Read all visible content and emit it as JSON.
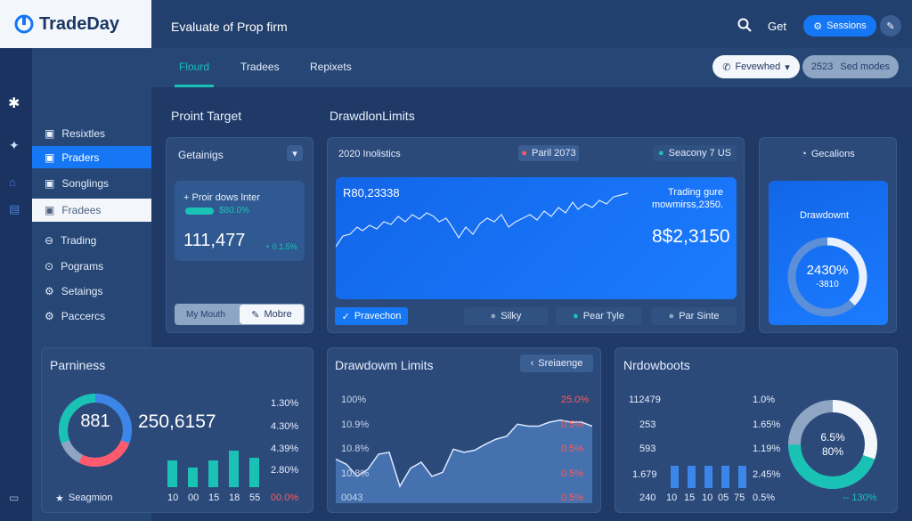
{
  "logo": {
    "text": "TradeDay"
  },
  "header": {
    "title": "Evaluate of Prop firm",
    "get_label": "Get",
    "sessions_label": "Sessions"
  },
  "tabs": [
    {
      "label": "Flourd"
    },
    {
      "label": "Tradees"
    },
    {
      "label": "Repixets"
    }
  ],
  "tabbar_right": {
    "dropdown": "Fevewhed",
    "badge": "2523",
    "mode": "Sed modes"
  },
  "sidebar": {
    "items": [
      {
        "label": "Resixtles"
      },
      {
        "label": "Praders"
      },
      {
        "label": "Songlings"
      },
      {
        "label": "Fradees"
      },
      {
        "label": "Trading"
      },
      {
        "label": "Pograms"
      },
      {
        "label": "Setaings"
      },
      {
        "label": "Paccercs"
      }
    ]
  },
  "sections": {
    "profit_target": "Proint Target",
    "drawdown_limits": "DrawdlonLimits"
  },
  "getainigs": {
    "title": "Getainigs",
    "line1": "+ Proir dows lnter",
    "badge": "$80.0%",
    "value": "111,477",
    "delta": "+ 0.1.5%",
    "seg_left": "My Mouth",
    "seg_right": "Mobre"
  },
  "main_chart": {
    "label_left": "2020 Inolistics",
    "label_mid": "Paril 2073",
    "label_right": "Seacony 7 US",
    "value_top": "R80,23338",
    "trading_line1": "Trading gure",
    "trading_line2": "mowmirss,2350.",
    "big_value": "8$2,3150",
    "btn_primary": "Pravechon",
    "btn2": "Silky",
    "btn3": "Pear Tyle",
    "btn4": "Par Sinte"
  },
  "cards": {
    "title": "Gecalions",
    "drawdown_label": "Drawdownt",
    "ring_value": "2430%",
    "ring_sub": "-3810"
  },
  "parniness": {
    "title": "Parniness",
    "gauge_value": "881",
    "big": "250,6157",
    "right_values": [
      "1.30%",
      "4.30%",
      "4.39%",
      "2.80%",
      "00.0%"
    ],
    "bar_labels": [
      "10",
      "00",
      "15",
      "18",
      "55"
    ],
    "bar_values": [
      0.55,
      0.4,
      0.55,
      0.75,
      0.6
    ],
    "footer": "Seagmion"
  },
  "bottom_chart": {
    "title": "Drawdowm Limits",
    "button": "Sreiaenge",
    "y_labels": [
      "100%",
      "10.9%",
      "10.8%",
      "10.8%",
      "0043"
    ],
    "right_labels": [
      "25.0%",
      "0.5%",
      "0.5%",
      "0.5%",
      "0.5%"
    ],
    "points": [
      35,
      30,
      18,
      25,
      40,
      42,
      8,
      26,
      32,
      18,
      22,
      45,
      42,
      44,
      50,
      55,
      58,
      70,
      68,
      68,
      72,
      74,
      72,
      72,
      68
    ]
  },
  "nrdowboots": {
    "title": "Nrdowboots",
    "left_values": [
      "112479",
      "253",
      "593",
      "1.679",
      "240"
    ],
    "mid_values": [
      "1.0%",
      "1.65%",
      "1.19%",
      "2.45%",
      "0.5%"
    ],
    "bar_labels": [
      "10",
      "15",
      "10",
      "05",
      "75"
    ],
    "bar_values": [
      0.55,
      0.55,
      0.55,
      0.55,
      0.55
    ],
    "donut_value": "6.5%",
    "donut_sub": "80%",
    "footer": "-- 130%"
  },
  "accent": "#1677f5"
}
